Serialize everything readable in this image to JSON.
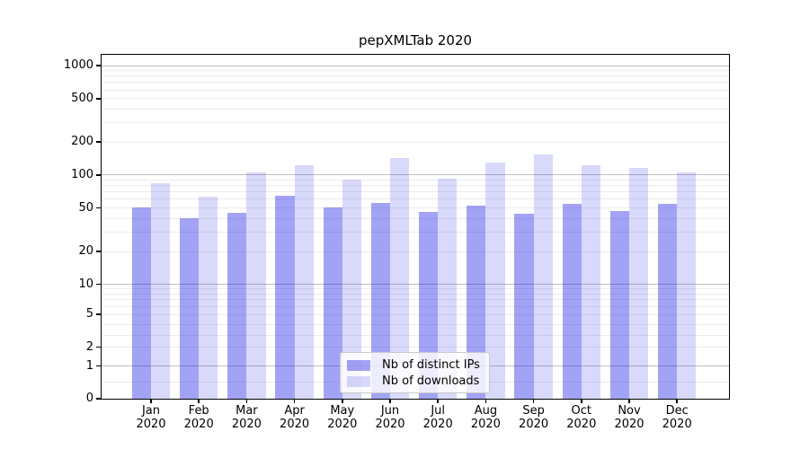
{
  "title": "pepXMLTab 2020",
  "colors": {
    "distinct_ips": "rgba(0,0,230,0.36)",
    "downloads": "rgba(0,0,230,0.15)",
    "grid_major": "#c0c0c0",
    "grid_minor": "#ececec",
    "axis": "#000000",
    "legend_border": "#c9c9c9",
    "legend_bg": "rgba(255,255,255,0.8)"
  },
  "chart_data": {
    "type": "bar",
    "title": "pepXMLTab 2020",
    "categories": [
      "Jan 2020",
      "Feb 2020",
      "Mar 2020",
      "Apr 2020",
      "May 2020",
      "Jun 2020",
      "Jul 2020",
      "Aug 2020",
      "Sep 2020",
      "Oct 2020",
      "Nov 2020",
      "Dec 2020"
    ],
    "month_labels": [
      "Jan",
      "Feb",
      "Mar",
      "Apr",
      "May",
      "Jun",
      "Jul",
      "Aug",
      "Sep",
      "Oct",
      "Nov",
      "Dec"
    ],
    "year_label": "2020",
    "series": [
      {
        "name": "Nb of distinct IPs",
        "key": "distinct_ips",
        "values": [
          51,
          40,
          45,
          65,
          51,
          56,
          46,
          52,
          44,
          55,
          47,
          55
        ]
      },
      {
        "name": "Nb of downloads",
        "key": "downloads",
        "values": [
          84,
          64,
          105,
          122,
          90,
          144,
          93,
          130,
          154,
          123,
          117,
          105
        ]
      }
    ],
    "yscale": "pseudo-log",
    "yticks": [
      0,
      1,
      2,
      5,
      10,
      20,
      50,
      100,
      200,
      500,
      1000
    ],
    "ylim": [
      0,
      1300
    ],
    "grid": "horizontal",
    "legend_position": "lower-center"
  }
}
